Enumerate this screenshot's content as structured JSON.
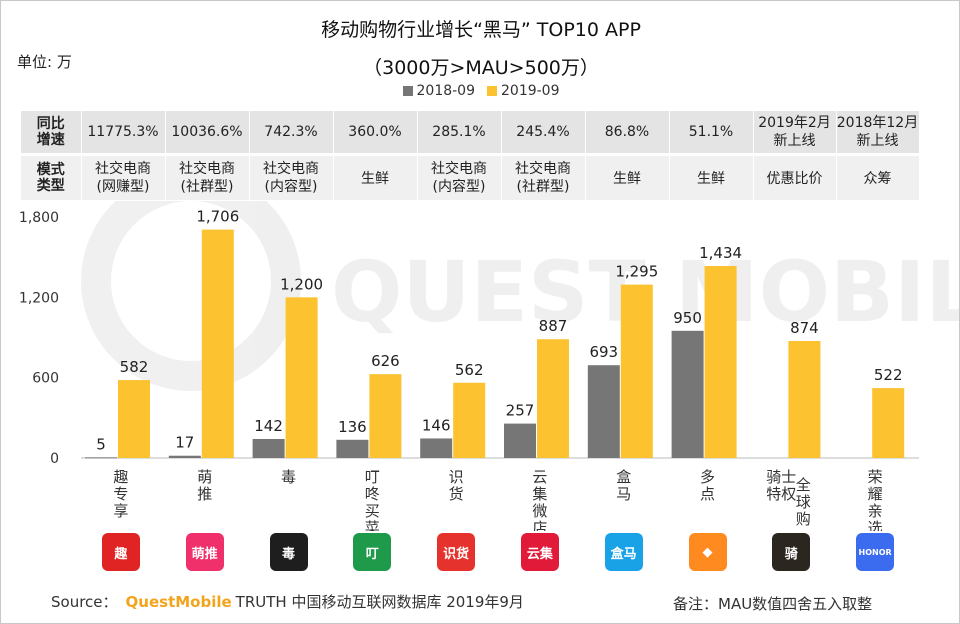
{
  "chart_data": {
    "type": "bar",
    "title": "移动购物行业增长“黑马” TOP10 APP",
    "subtitle": "（3000万>MAU>500万）",
    "unit_label": "单位: 万",
    "ylim": [
      0,
      1800
    ],
    "yticks": [
      "0",
      "600",
      "1,200",
      "1,800"
    ],
    "ytick_values": [
      0,
      600,
      1200,
      1800
    ],
    "categories": [
      "趣专享",
      "萌推",
      "毒",
      "叮咚买菜",
      "识货",
      "云集微店",
      "盒马",
      "多点",
      "骑士特权 全球购",
      "荣耀亲选"
    ],
    "category_lines": [
      [
        "趣",
        "专",
        "享"
      ],
      [
        "萌",
        "推"
      ],
      [
        "毒"
      ],
      [
        "叮",
        "咚",
        "买",
        "菜"
      ],
      [
        "识",
        "货"
      ],
      [
        "云",
        "集",
        "微",
        "店"
      ],
      [
        "盒",
        "马"
      ],
      [
        "多",
        "点"
      ],
      [
        "骑士",
        "特权"
      ],
      [
        "荣",
        "耀",
        "亲",
        "选"
      ]
    ],
    "category_lines_b": [
      [],
      [],
      [],
      [],
      [],
      [],
      [],
      [],
      [
        "全",
        "球",
        "购"
      ],
      []
    ],
    "series": [
      {
        "name": "2018-09",
        "color": "#767676",
        "values": [
          5,
          17,
          142,
          136,
          146,
          257,
          693,
          950,
          null,
          null
        ],
        "labels": [
          "5",
          "17",
          "142",
          "136",
          "146",
          "257",
          "693",
          "950",
          "",
          ""
        ]
      },
      {
        "name": "2019-09",
        "color": "#fcc22f",
        "values": [
          582,
          1706,
          1200,
          626,
          562,
          887,
          1295,
          1434,
          874,
          522
        ],
        "labels": [
          "582",
          "1,706",
          "1,200",
          "626",
          "562",
          "887",
          "1,295",
          "1,434",
          "874",
          "522"
        ]
      }
    ]
  },
  "table": {
    "row1_header": [
      "同比",
      "增速"
    ],
    "row1": [
      {
        "a": "11775.3%"
      },
      {
        "a": "10036.6%"
      },
      {
        "a": "742.3%"
      },
      {
        "a": "360.0%"
      },
      {
        "a": "285.1%"
      },
      {
        "a": "245.4%"
      },
      {
        "a": "86.8%"
      },
      {
        "a": "51.1%"
      },
      {
        "a": "2019年2月",
        "b": "新上线"
      },
      {
        "a": "2018年12月",
        "b": "新上线"
      }
    ],
    "row2_header": [
      "模式",
      "类型"
    ],
    "row2": [
      {
        "a": "社交电商",
        "b": "(网赚型)",
        "red": true
      },
      {
        "a": "社交电商",
        "b": "(社群型)",
        "red": true
      },
      {
        "a": "社交电商",
        "b": "(内容型)",
        "red": true
      },
      {
        "a": "生鲜",
        "red": false
      },
      {
        "a": "社交电商",
        "b": "(内容型)",
        "red": true
      },
      {
        "a": "社交电商",
        "b": "(社群型)",
        "red": true
      },
      {
        "a": "生鲜",
        "red": false
      },
      {
        "a": "生鲜",
        "red": false
      },
      {
        "a": "优惠比价",
        "red": false
      },
      {
        "a": "众筹",
        "red": false
      }
    ]
  },
  "logos": [
    {
      "icon": "quzhuanxiang-app-icon",
      "text": "趣",
      "color": "#e02424"
    },
    {
      "icon": "mengtui-app-icon",
      "text": "萌推",
      "color": "#f0306a"
    },
    {
      "icon": "du-app-icon",
      "text": "毒",
      "color": "#1e1e1e"
    },
    {
      "icon": "dingdong-app-icon",
      "text": "叮",
      "color": "#1f9a4a"
    },
    {
      "icon": "shihuo-app-icon",
      "text": "识货",
      "color": "#e5322c"
    },
    {
      "icon": "yunji-app-icon",
      "text": "云集",
      "color": "#e21a3a"
    },
    {
      "icon": "hema-app-icon",
      "text": "盒马",
      "color": "#1aa2e6"
    },
    {
      "icon": "duodian-app-icon",
      "text": "◆",
      "color": "#ff8a1f"
    },
    {
      "icon": "qishi-app-icon",
      "text": "骑",
      "color": "#2b2620"
    },
    {
      "icon": "honor-app-icon",
      "text": "HONOR",
      "color": "#3b6cf0"
    }
  ],
  "watermark": "QUEST MOBILE",
  "source": {
    "prefix": "Source：",
    "brand": "QuestMobile",
    "rest": "TRUTH 中国移动互联网数据库 2019年9月"
  },
  "footnote": "备注：MAU数值四舍五入取整"
}
